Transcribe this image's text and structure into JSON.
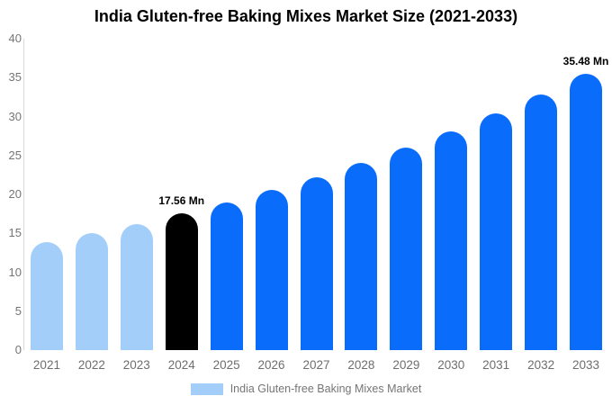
{
  "title": "India Gluten-free Baking Mixes Market Size (2021-2033)",
  "chart_data": {
    "type": "bar",
    "title": "India Gluten-free Baking Mixes Market Size (2021-2033)",
    "xlabel": "",
    "ylabel": "",
    "ylim": [
      0,
      40
    ],
    "yticks": [
      0,
      5,
      10,
      15,
      20,
      25,
      30,
      35,
      40
    ],
    "grid": false,
    "categories": [
      "2021",
      "2022",
      "2023",
      "2024",
      "2025",
      "2026",
      "2027",
      "2028",
      "2029",
      "2030",
      "2031",
      "2032",
      "2033"
    ],
    "series": [
      {
        "name": "India Gluten-free Baking Mixes Market",
        "values": [
          13.88,
          15.01,
          16.23,
          17.56,
          18.99,
          20.53,
          22.2,
          24.01,
          25.96,
          28.07,
          30.35,
          32.81,
          35.48
        ]
      }
    ],
    "bar_colors": [
      "#a3cefa",
      "#a3cefa",
      "#a3cefa",
      "#000000",
      "#0a6cfb",
      "#0a6cfb",
      "#0a6cfb",
      "#0a6cfb",
      "#0a6cfb",
      "#0a6cfb",
      "#0a6cfb",
      "#0a6cfb",
      "#0a6cfb"
    ],
    "annotations": [
      {
        "category": "2024",
        "text": "17.56 Mn"
      },
      {
        "category": "2033",
        "text": "35.48 Mn"
      }
    ],
    "legend": {
      "position": "bottom",
      "label": "India Gluten-free Baking Mixes Market",
      "swatch_color": "#a3cefa"
    }
  },
  "colors": {
    "past_bars": "#a3cefa",
    "current_bar": "#000000",
    "forecast_bars": "#0a6cfb",
    "axis_line": "#d9d9d9",
    "tick_text": "#757575",
    "title_text": "#000000"
  }
}
